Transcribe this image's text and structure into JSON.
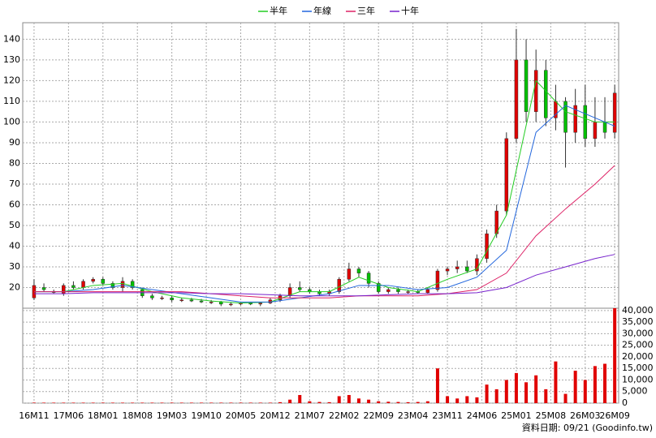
{
  "chart_data": {
    "type": "candlestick",
    "legend_labels": [
      "半年",
      "年線",
      "三年",
      "十年"
    ],
    "footer": "資料日期: 09/21 (Goodinfo.tw)",
    "xlim": [
      -2.3,
      118.8
    ],
    "xticks": [
      {
        "value": 0,
        "label": "16M11"
      },
      {
        "value": 7,
        "label": "17M06"
      },
      {
        "value": 14,
        "label": "18M01"
      },
      {
        "value": 21,
        "label": "18M08"
      },
      {
        "value": 28,
        "label": "19M03"
      },
      {
        "value": 35,
        "label": "19M10"
      },
      {
        "value": 42,
        "label": "20M05"
      },
      {
        "value": 49,
        "label": "20M12"
      },
      {
        "value": 56,
        "label": "21M07"
      },
      {
        "value": 63,
        "label": "22M02"
      },
      {
        "value": 70,
        "label": "22M09"
      },
      {
        "value": 77,
        "label": "23M04"
      },
      {
        "value": 84,
        "label": "23M11"
      },
      {
        "value": 91,
        "label": "24M06"
      },
      {
        "value": 98,
        "label": "25M01"
      },
      {
        "value": 105,
        "label": "25M08"
      },
      {
        "value": 112,
        "label": "26M03"
      },
      {
        "value": 118,
        "label": "26M09"
      }
    ],
    "ylim": [
      10,
      148
    ],
    "yticks": [
      20,
      30,
      40,
      50,
      60,
      70,
      80,
      90,
      100,
      110,
      120,
      130,
      140
    ],
    "y2lim": [
      0,
      41000
    ],
    "y2ticks": [
      0,
      {
        "value": 5000,
        "label": "5,000"
      },
      {
        "value": 10000,
        "label": "10,000"
      },
      {
        "value": 15000,
        "label": "15,000"
      },
      {
        "value": 20000,
        "label": "20,000"
      },
      {
        "value": 25000,
        "label": "25,000"
      },
      {
        "value": 30000,
        "label": "30,000"
      },
      {
        "value": 35000,
        "label": "35,000"
      },
      {
        "value": 40000,
        "label": "40,000"
      }
    ],
    "grid": true,
    "up_color": "#e00000",
    "down_color": "#00c000",
    "volume_color": "#e00000",
    "candles": {
      "x": [
        0,
        2,
        4,
        6,
        8,
        10,
        12,
        14,
        16,
        18,
        20,
        22,
        24,
        26,
        28,
        30,
        32,
        34,
        36,
        38,
        40,
        42,
        44,
        46,
        48,
        50,
        52,
        54,
        56,
        58,
        60,
        62,
        64,
        66,
        68,
        70,
        72,
        74,
        76,
        78,
        80,
        82,
        84,
        86,
        88,
        90,
        92,
        94,
        96,
        98,
        100,
        102,
        104,
        106,
        108,
        110,
        112,
        114,
        116,
        118
      ],
      "open": [
        15,
        20,
        18,
        17,
        21,
        20,
        23,
        24,
        22,
        20,
        23,
        19,
        16,
        15,
        15,
        14,
        14,
        13.5,
        13,
        13,
        12,
        12,
        12.5,
        12,
        12.5,
        14,
        16,
        20,
        19,
        18,
        17,
        18,
        24,
        29,
        27,
        22,
        18,
        19,
        18,
        18,
        17.5,
        19,
        28,
        29,
        30,
        28,
        34,
        46,
        57,
        92,
        130,
        105,
        125,
        102,
        110,
        95,
        108,
        92,
        100,
        95
      ],
      "high": [
        24,
        22,
        19,
        22,
        23,
        24,
        25,
        25,
        23,
        25,
        24,
        20,
        17,
        16,
        16,
        15,
        15,
        14.5,
        14,
        13.5,
        13,
        13,
        13,
        13,
        15,
        17,
        22,
        23,
        20,
        19,
        19,
        25,
        32,
        30,
        28,
        23,
        20,
        20,
        19,
        19,
        20,
        29,
        30,
        33,
        33,
        36,
        48,
        60,
        95,
        145,
        140,
        135,
        130,
        118,
        112,
        116,
        118,
        112,
        112,
        118
      ],
      "low": [
        14,
        18,
        17,
        16,
        19,
        19,
        22,
        21,
        19,
        18,
        19,
        15,
        14,
        14,
        13,
        13,
        13,
        12.5,
        12,
        11,
        11,
        11.5,
        11.5,
        11,
        12,
        13,
        15,
        18,
        17,
        16,
        16,
        17,
        23,
        25,
        20,
        17,
        17,
        17,
        17,
        17,
        17,
        18,
        26,
        27,
        27,
        26,
        32,
        44,
        55,
        90,
        100,
        100,
        98,
        96,
        78,
        90,
        88,
        88,
        92,
        92
      ],
      "close": [
        21,
        19,
        18,
        21,
        20,
        23,
        24,
        22,
        20,
        23,
        20,
        16,
        15,
        15,
        14,
        14,
        13.5,
        13,
        13,
        12,
        12,
        12.5,
        12,
        12.5,
        14,
        16,
        20,
        19,
        18,
        17,
        18,
        24,
        29,
        27,
        22,
        18,
        19,
        18,
        18,
        17.5,
        19,
        28,
        29,
        30,
        28,
        34,
        46,
        57,
        92,
        130,
        105,
        125,
        102,
        110,
        95,
        108,
        92,
        100,
        95,
        114
      ]
    },
    "volume": [
      200,
      200,
      200,
      200,
      200,
      200,
      200,
      200,
      200,
      200,
      200,
      200,
      200,
      200,
      200,
      200,
      200,
      200,
      200,
      200,
      200,
      200,
      200,
      200,
      200,
      400,
      1500,
      3500,
      800,
      500,
      400,
      3000,
      3500,
      2000,
      1500,
      800,
      600,
      500,
      400,
      500,
      800,
      15000,
      3000,
      2000,
      3000,
      2500,
      8000,
      6000,
      10000,
      13000,
      9000,
      12000,
      6000,
      18000,
      4000,
      14000,
      10000,
      16000,
      17000,
      41000
    ],
    "ma_x": [
      0,
      6,
      12,
      18,
      24,
      30,
      36,
      42,
      48,
      54,
      60,
      66,
      72,
      78,
      84,
      90,
      96,
      102,
      108,
      114,
      118
    ],
    "series": [
      {
        "name": "半年",
        "color": "#22cc22",
        "values": [
          18,
          18,
          21,
          22,
          18,
          15,
          13.5,
          12.5,
          13,
          18,
          18,
          25,
          20,
          18,
          24,
          29,
          55,
          120,
          105,
          100,
          100
        ]
      },
      {
        "name": "年線",
        "color": "#2266dd",
        "values": [
          18,
          18,
          19,
          21,
          19,
          17,
          15,
          13,
          13,
          15,
          17,
          21,
          21,
          19,
          20,
          25,
          38,
          95,
          108,
          102,
          98
        ]
      },
      {
        "name": "三年",
        "color": "#dd2266",
        "values": [
          18,
          18,
          18,
          18,
          18,
          18,
          17,
          16,
          15,
          15,
          15,
          16,
          16,
          16,
          17,
          19,
          27,
          45,
          58,
          70,
          79
        ]
      },
      {
        "name": "十年",
        "color": "#7722cc",
        "values": [
          17,
          17,
          17.5,
          17.5,
          17.5,
          17.5,
          17,
          17,
          16.5,
          16,
          16,
          16,
          16.5,
          17,
          17,
          17.5,
          20,
          26,
          30,
          34,
          36
        ]
      }
    ]
  }
}
